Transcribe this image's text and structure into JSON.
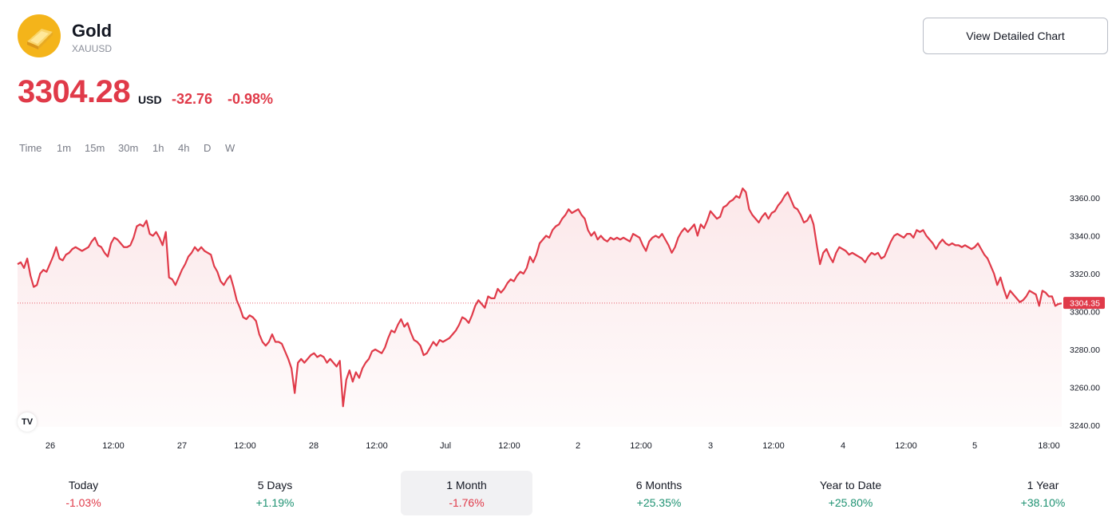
{
  "asset": {
    "name": "Gold",
    "ticker": "XAUUSD",
    "price": "3304.28",
    "currency": "USD",
    "change_abs": "-32.76",
    "change_pct": "-0.98%"
  },
  "header": {
    "detail_button_label": "View Detailed Chart"
  },
  "intervals": [
    "Time",
    "1m",
    "15m",
    "30m",
    "1h",
    "4h",
    "D",
    "W"
  ],
  "periods": [
    {
      "label": "Today",
      "value": "-1.03%",
      "trend": "neg",
      "active": false
    },
    {
      "label": "5 Days",
      "value": "+1.19%",
      "trend": "pos",
      "active": false
    },
    {
      "label": "1 Month",
      "value": "-1.76%",
      "trend": "neg",
      "active": true
    },
    {
      "label": "6 Months",
      "value": "+25.35%",
      "trend": "pos",
      "active": false
    },
    {
      "label": "Year to Date",
      "value": "+25.80%",
      "trend": "pos",
      "active": false
    },
    {
      "label": "1 Year",
      "value": "+38.10%",
      "trend": "pos",
      "active": false
    }
  ],
  "colors": {
    "line": "#e03a49",
    "positive": "#1e9272",
    "negative": "#e03a49",
    "logo": "#f4b41a"
  },
  "icons": {
    "logo": "gold-bar-icon",
    "badge": "tradingview-logo-icon"
  },
  "chart_data": {
    "type": "line",
    "ylim": [
      3235,
      3372
    ],
    "y_ticks": [
      "3360.00",
      "3340.00",
      "3320.00",
      "3300.00",
      "3280.00",
      "3260.00",
      "3240.00"
    ],
    "x_ticks": [
      "26",
      "12:00",
      "27",
      "12:00",
      "28",
      "12:00",
      "Jul",
      "12:00",
      "2",
      "12:00",
      "3",
      "12:00",
      "4",
      "12:00",
      "5",
      "18:00"
    ],
    "last_value_label": "3304.35",
    "last_value": 3304.35,
    "reference_value": 3304.5,
    "grid": false,
    "values": [
      3325,
      3326,
      3323,
      3328,
      3319,
      3313,
      3314,
      3320,
      3322,
      3321,
      3325,
      3329,
      3334,
      3328,
      3327,
      3330,
      3331,
      3333,
      3334,
      3333,
      3332,
      3333,
      3334,
      3337,
      3339,
      3335,
      3334,
      3331,
      3329,
      3336,
      3339,
      3338,
      3336,
      3334,
      3334,
      3335,
      3339,
      3345,
      3346,
      3345,
      3348,
      3341,
      3340,
      3342,
      3339,
      3335,
      3342,
      3318,
      3317,
      3314,
      3318,
      3322,
      3325,
      3329,
      3331,
      3334,
      3332,
      3334,
      3332,
      3331,
      3330,
      3324,
      3321,
      3316,
      3314,
      3317,
      3319,
      3313,
      3306,
      3302,
      3297,
      3296,
      3298,
      3297,
      3295,
      3288,
      3284,
      3282,
      3284,
      3288,
      3284,
      3284,
      3283,
      3279,
      3275,
      3270,
      3257,
      3273,
      3275,
      3273,
      3275,
      3277,
      3278,
      3276,
      3277,
      3276,
      3273,
      3275,
      3273,
      3271,
      3274,
      3250,
      3264,
      3269,
      3263,
      3268,
      3265,
      3270,
      3273,
      3275,
      3279,
      3280,
      3279,
      3278,
      3281,
      3286,
      3290,
      3289,
      3293,
      3296,
      3292,
      3294,
      3289,
      3285,
      3284,
      3282,
      3277,
      3278,
      3281,
      3284,
      3282,
      3285,
      3284,
      3285,
      3286,
      3288,
      3290,
      3293,
      3297,
      3296,
      3294,
      3298,
      3303,
      3306,
      3304,
      3302,
      3308,
      3307,
      3307,
      3312,
      3310,
      3312,
      3315,
      3317,
      3316,
      3319,
      3321,
      3320,
      3323,
      3329,
      3326,
      3330,
      3336,
      3338,
      3340,
      3339,
      3343,
      3345,
      3346,
      3349,
      3351,
      3354,
      3352,
      3353,
      3354,
      3351,
      3349,
      3343,
      3340,
      3342,
      3338,
      3340,
      3338,
      3337,
      3339,
      3338,
      3339,
      3338,
      3339,
      3338,
      3337,
      3341,
      3340,
      3339,
      3335,
      3332,
      3337,
      3339,
      3340,
      3339,
      3341,
      3338,
      3335,
      3331,
      3334,
      3339,
      3342,
      3344,
      3342,
      3344,
      3346,
      3340,
      3346,
      3344,
      3348,
      3353,
      3351,
      3349,
      3350,
      3355,
      3356,
      3358,
      3359,
      3361,
      3360,
      3365,
      3363,
      3354,
      3351,
      3349,
      3347,
      3350,
      3352,
      3349,
      3352,
      3353,
      3356,
      3358,
      3361,
      3363,
      3359,
      3355,
      3354,
      3351,
      3347,
      3348,
      3351,
      3346,
      3335,
      3325,
      3331,
      3333,
      3329,
      3326,
      3331,
      3334,
      3333,
      3332,
      3330,
      3331,
      3330,
      3329,
      3328,
      3326,
      3329,
      3331,
      3330,
      3331,
      3328,
      3329,
      3333,
      3337,
      3340,
      3341,
      3340,
      3339,
      3341,
      3341,
      3339,
      3343,
      3342,
      3343,
      3340,
      3338,
      3336,
      3333,
      3336,
      3338,
      3336,
      3335,
      3336,
      3335,
      3335,
      3334,
      3335,
      3334,
      3333,
      3334,
      3336,
      3333,
      3330,
      3328,
      3324,
      3320,
      3314,
      3318,
      3312,
      3307,
      3311,
      3309,
      3307,
      3305,
      3306,
      3308,
      3311,
      3310,
      3309,
      3303,
      3311,
      3310,
      3308,
      3308,
      3303,
      3304,
      3304.35
    ]
  }
}
